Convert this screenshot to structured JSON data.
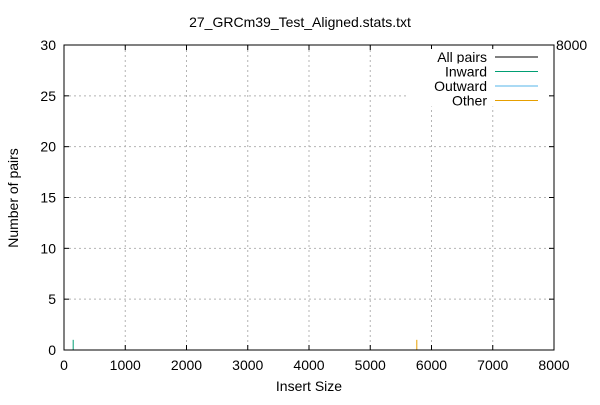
{
  "chart_data": {
    "type": "line",
    "title": "27_GRCm39_Test_Aligned.stats.txt",
    "xlabel": "Insert Size",
    "ylabel": "Number of pairs",
    "xlim": [
      0,
      8000
    ],
    "ylim": [
      0,
      30
    ],
    "xticks": [
      "0",
      "1000",
      "2000",
      "3000",
      "4000",
      "5000",
      "6000",
      "7000",
      "8000"
    ],
    "yticks": [
      "0",
      "5",
      "10",
      "15",
      "20",
      "25",
      "30"
    ],
    "grid": true,
    "legend_position": "top-right",
    "corner_label": "8000",
    "series": [
      {
        "name": "All pairs",
        "color": "#000000",
        "x": [],
        "y": []
      },
      {
        "name": "Inward",
        "color": "#009e73",
        "x": [
          150,
          150
        ],
        "y": [
          0,
          1
        ]
      },
      {
        "name": "Outward",
        "color": "#56b4e9",
        "x": [],
        "y": []
      },
      {
        "name": "Other",
        "color": "#e69f00",
        "x": [
          5760,
          5760
        ],
        "y": [
          0,
          1
        ]
      }
    ]
  }
}
